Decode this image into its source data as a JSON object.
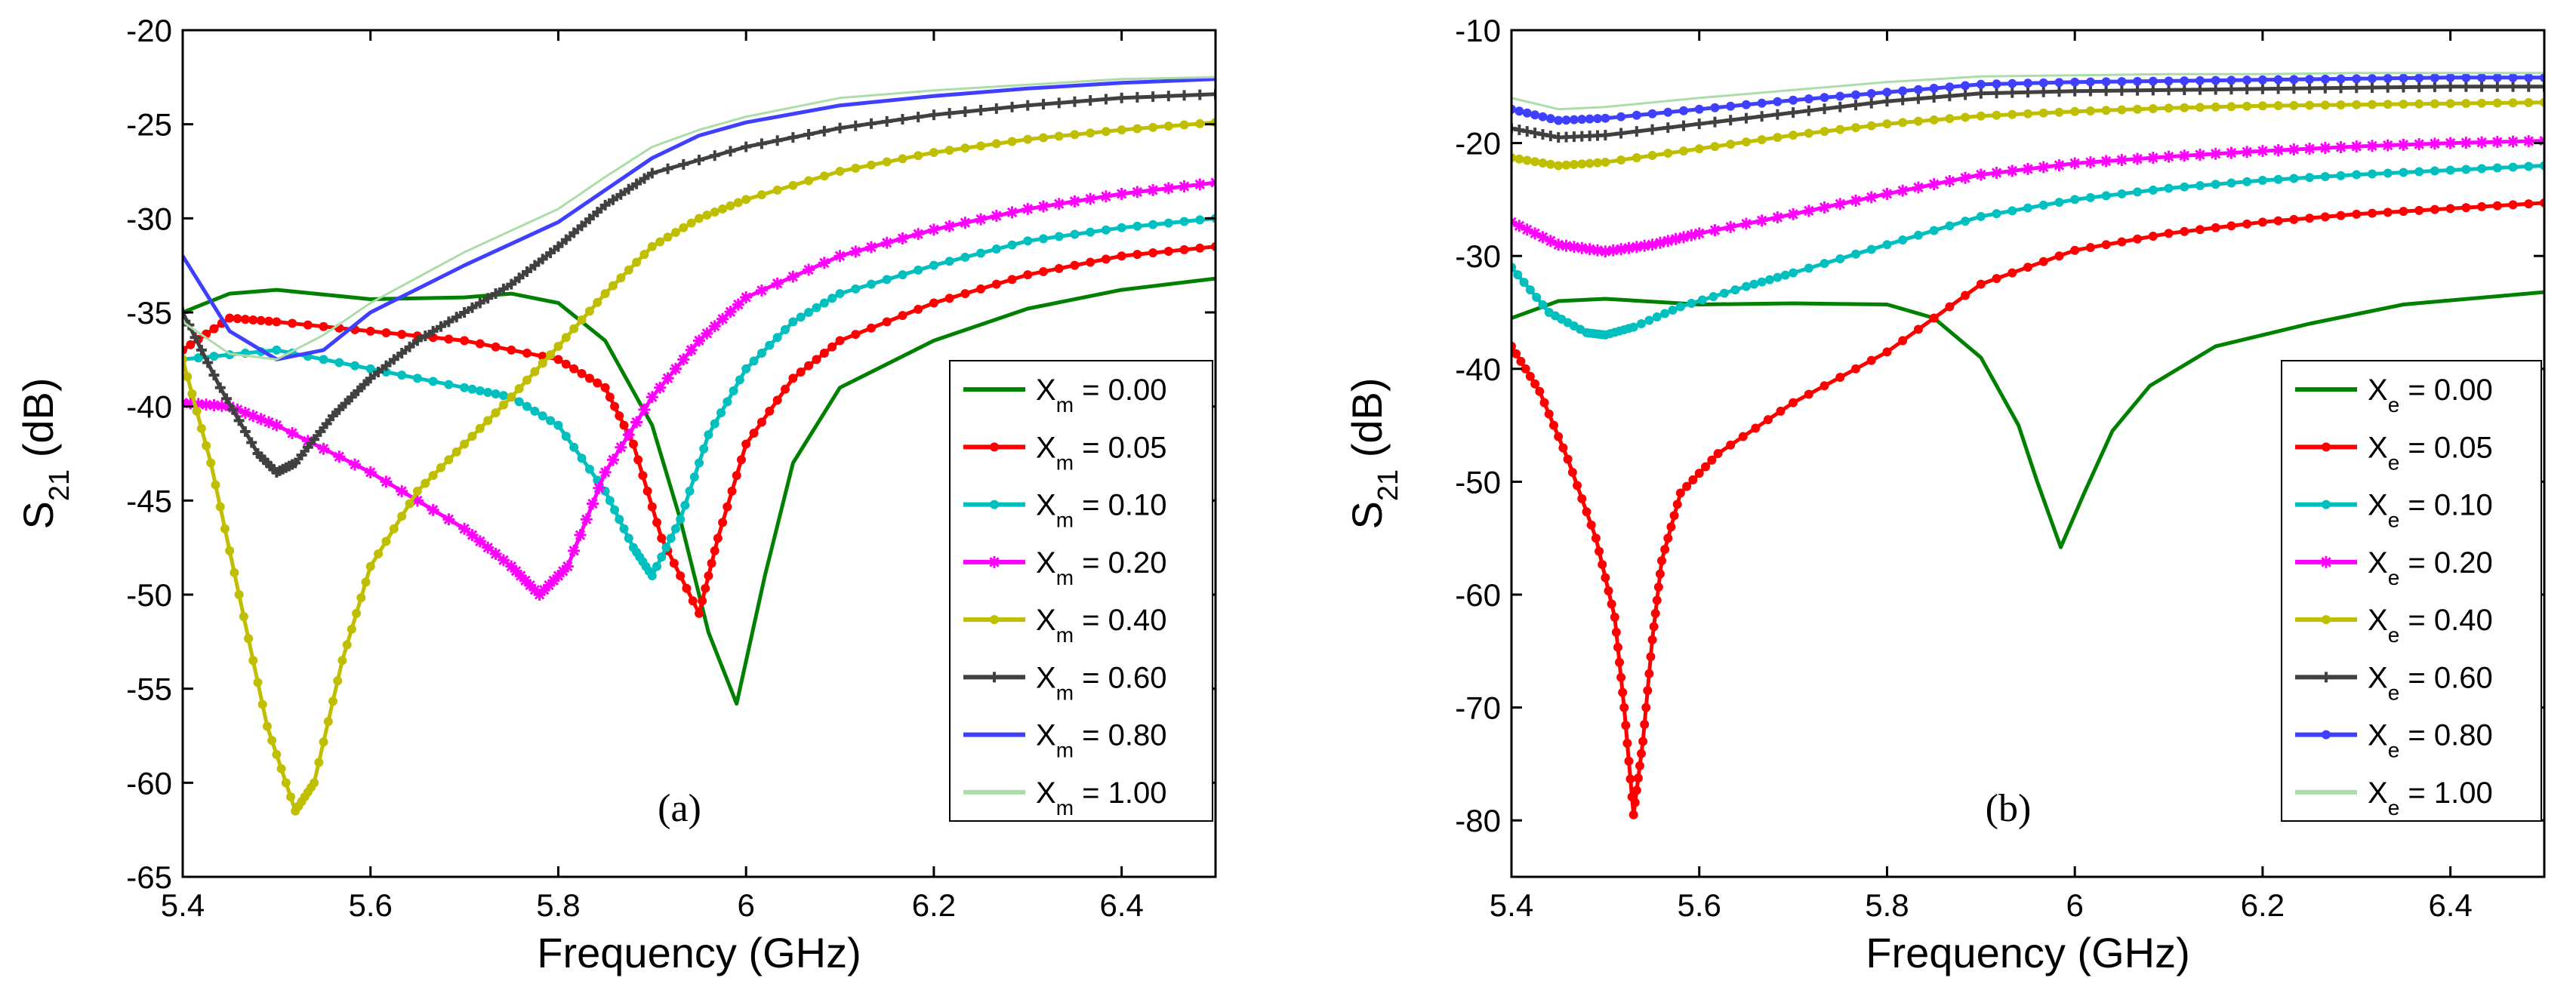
{
  "chart_data": [
    {
      "type": "line",
      "panel_label": "(a)",
      "xlabel": "Frequency (GHz)",
      "ylabel": "S",
      "ylabel_sub": "21",
      "ylabel_unit": " (dB)",
      "xlim": [
        5.4,
        6.5
      ],
      "ylim": [
        -65,
        -20
      ],
      "xticks": [
        5.4,
        5.6,
        5.8,
        6,
        6.2,
        6.4
      ],
      "xtick_labels": [
        "5.4",
        "5.6",
        "5.8",
        "6",
        "6.2",
        "6.4"
      ],
      "yticks": [
        -65,
        -60,
        -55,
        -50,
        -45,
        -40,
        -35,
        -30,
        -25,
        -20
      ],
      "ytick_labels": [
        "-65",
        "-60",
        "-55",
        "-50",
        "-45",
        "-40",
        "-35",
        "-30",
        "-25",
        "-20"
      ],
      "legend_position": "bottom-right",
      "legend_var": "X",
      "legend_sub": "m",
      "series": [
        {
          "name": "0.00",
          "label": " = 0.00",
          "color": "#008000",
          "marker": "none",
          "x": [
            5.4,
            5.45,
            5.5,
            5.6,
            5.7,
            5.75,
            5.8,
            5.85,
            5.9,
            5.93,
            5.96,
            5.99,
            6.02,
            6.05,
            6.1,
            6.2,
            6.3,
            6.4,
            6.5
          ],
          "y": [
            -35,
            -34,
            -33.8,
            -34.3,
            -34.2,
            -34.0,
            -34.5,
            -36.5,
            -41,
            -46,
            -52,
            -55.8,
            -49,
            -43,
            -39,
            -36.5,
            -34.8,
            -33.8,
            -33.2
          ]
        },
        {
          "name": "0.05",
          "label": " = 0.05",
          "color": "#ff0000",
          "marker": "dot",
          "x": [
            5.4,
            5.45,
            5.5,
            5.6,
            5.7,
            5.8,
            5.85,
            5.88,
            5.91,
            5.95,
            5.97,
            6.0,
            6.05,
            6.1,
            6.2,
            6.3,
            6.4,
            6.5
          ],
          "y": [
            -37,
            -35.3,
            -35.5,
            -36,
            -36.5,
            -37.5,
            -39,
            -42,
            -47,
            -51,
            -47,
            -42,
            -38.5,
            -36.5,
            -34.5,
            -33,
            -32,
            -31.5
          ]
        },
        {
          "name": "0.10",
          "label": " = 0.10",
          "color": "#00bfbf",
          "marker": "dot",
          "x": [
            5.4,
            5.5,
            5.6,
            5.7,
            5.75,
            5.8,
            5.85,
            5.88,
            5.9,
            5.93,
            5.96,
            6.0,
            6.05,
            6.1,
            6.2,
            6.3,
            6.4,
            6.5
          ],
          "y": [
            -37.5,
            -37,
            -38,
            -39,
            -39.5,
            -41,
            -44.5,
            -47.5,
            -49,
            -46,
            -41.5,
            -38,
            -35.5,
            -34,
            -32.5,
            -31.2,
            -30.5,
            -30
          ]
        },
        {
          "name": "0.20",
          "label": " = 0.20",
          "color": "#ff00ff",
          "marker": "star",
          "x": [
            5.4,
            5.45,
            5.5,
            5.6,
            5.7,
            5.75,
            5.78,
            5.81,
            5.85,
            5.9,
            5.95,
            6.0,
            6.1,
            6.2,
            6.3,
            6.4,
            6.5
          ],
          "y": [
            -39.8,
            -40,
            -41,
            -43.5,
            -46.5,
            -48.5,
            -50,
            -48.5,
            -43.5,
            -39.5,
            -36.5,
            -34.2,
            -32,
            -30.6,
            -29.5,
            -28.7,
            -28.1
          ]
        },
        {
          "name": "0.40",
          "label": " = 0.40",
          "color": "#bfbf00",
          "marker": "dot",
          "x": [
            5.4,
            5.43,
            5.46,
            5.49,
            5.52,
            5.54,
            5.57,
            5.6,
            5.65,
            5.7,
            5.75,
            5.8,
            5.85,
            5.9,
            5.95,
            6.0,
            6.1,
            6.2,
            6.3,
            6.4,
            6.5
          ],
          "y": [
            -37.5,
            -43,
            -50,
            -57,
            -61.5,
            -60,
            -53.5,
            -48.5,
            -44.5,
            -42,
            -39.5,
            -36.8,
            -34,
            -31.5,
            -30,
            -29,
            -27.5,
            -26.5,
            -25.8,
            -25.3,
            -24.9
          ]
        },
        {
          "name": "0.60",
          "label": " = 0.60",
          "color": "#404040",
          "marker": "plus",
          "x": [
            5.4,
            5.44,
            5.48,
            5.5,
            5.52,
            5.56,
            5.6,
            5.65,
            5.7,
            5.75,
            5.8,
            5.85,
            5.9,
            6.0,
            6.1,
            6.2,
            6.3,
            6.4,
            6.5
          ],
          "y": [
            -35,
            -39,
            -42.5,
            -43.5,
            -43,
            -40.5,
            -38.5,
            -36.5,
            -35,
            -33.5,
            -31.5,
            -29.3,
            -27.6,
            -26.2,
            -25.2,
            -24.5,
            -24,
            -23.6,
            -23.4
          ]
        },
        {
          "name": "0.80",
          "label": " = 0.80",
          "color": "#3f3fff",
          "marker": "none",
          "x": [
            5.4,
            5.45,
            5.5,
            5.55,
            5.6,
            5.7,
            5.8,
            5.85,
            5.9,
            5.95,
            6.0,
            6.1,
            6.2,
            6.3,
            6.4,
            6.5
          ],
          "y": [
            -32,
            -36,
            -37.5,
            -37,
            -35,
            -32.5,
            -30.2,
            -28.5,
            -26.8,
            -25.6,
            -24.9,
            -24,
            -23.5,
            -23.1,
            -22.8,
            -22.6
          ]
        },
        {
          "name": "1.00",
          "label": " = 1.00",
          "color": "#aaddaa",
          "marker": "none",
          "x": [
            5.4,
            5.45,
            5.5,
            5.55,
            5.6,
            5.7,
            5.8,
            5.85,
            5.9,
            5.95,
            6.0,
            6.1,
            6.2,
            6.3,
            6.4,
            6.5
          ],
          "y": [
            -35.5,
            -37.2,
            -37.5,
            -36.2,
            -34.5,
            -31.8,
            -29.5,
            -27.8,
            -26.2,
            -25.3,
            -24.6,
            -23.6,
            -23.2,
            -22.9,
            -22.6,
            -22.5
          ]
        }
      ]
    },
    {
      "type": "line",
      "panel_label": "(b)",
      "xlabel": "Frequency (GHz)",
      "ylabel": "S",
      "ylabel_sub": "21",
      "ylabel_unit": " (dB)",
      "xlim": [
        5.4,
        6.5
      ],
      "ylim": [
        -85,
        -10
      ],
      "xticks": [
        5.4,
        5.6,
        5.8,
        6,
        6.2,
        6.4
      ],
      "xtick_labels": [
        "5.4",
        "5.6",
        "5.8",
        "6",
        "6.2",
        "6.4"
      ],
      "yticks": [
        -80,
        -70,
        -60,
        -50,
        -40,
        -30,
        -20,
        -10
      ],
      "ytick_labels": [
        "-80",
        "-70",
        "-60",
        "-50",
        "-40",
        "-30",
        "-20",
        "-10"
      ],
      "legend_position": "bottom-right",
      "legend_var": "X",
      "legend_sub": "e",
      "series": [
        {
          "name": "0.00",
          "label": " = 0.00",
          "color": "#008000",
          "marker": "none",
          "x": [
            5.4,
            5.45,
            5.5,
            5.6,
            5.7,
            5.8,
            5.85,
            5.9,
            5.94,
            5.96,
            5.985,
            6.01,
            6.04,
            6.08,
            6.15,
            6.25,
            6.35,
            6.5
          ],
          "y": [
            -35.5,
            -34,
            -33.8,
            -34.3,
            -34.2,
            -34.3,
            -35.5,
            -39,
            -45,
            -50,
            -55.8,
            -51,
            -45.5,
            -41.5,
            -38,
            -36,
            -34.3,
            -33.2
          ]
        },
        {
          "name": "0.05",
          "label": " = 0.05",
          "color": "#ff0000",
          "marker": "dot",
          "x": [
            5.4,
            5.43,
            5.46,
            5.49,
            5.51,
            5.52,
            5.53,
            5.54,
            5.55,
            5.56,
            5.58,
            5.62,
            5.7,
            5.8,
            5.9,
            6.0,
            6.1,
            6.2,
            6.3,
            6.4,
            6.5
          ],
          "y": [
            -38,
            -42,
            -48,
            -55,
            -62,
            -70,
            -79.5,
            -73,
            -64,
            -57,
            -51,
            -47.5,
            -43,
            -38.5,
            -32.5,
            -29.5,
            -28,
            -27,
            -26.3,
            -25.8,
            -25.3
          ]
        },
        {
          "name": "0.10",
          "label": " = 0.10",
          "color": "#00bfbf",
          "marker": "dot",
          "x": [
            5.4,
            5.44,
            5.48,
            5.5,
            5.53,
            5.58,
            5.65,
            5.7,
            5.8,
            5.9,
            6.0,
            6.1,
            6.2,
            6.3,
            6.4,
            6.5
          ],
          "y": [
            -31,
            -35,
            -36.8,
            -37,
            -36.3,
            -34.5,
            -32.7,
            -31.5,
            -29,
            -26.5,
            -25,
            -24,
            -23.3,
            -22.8,
            -22.4,
            -22
          ]
        },
        {
          "name": "0.20",
          "label": " = 0.20",
          "color": "#ff00ff",
          "marker": "star",
          "x": [
            5.4,
            5.45,
            5.5,
            5.55,
            5.6,
            5.7,
            5.8,
            5.9,
            6.0,
            6.1,
            6.2,
            6.3,
            6.4,
            6.5
          ],
          "y": [
            -27,
            -29,
            -29.6,
            -29,
            -28,
            -26.3,
            -24.5,
            -22.8,
            -21.8,
            -21.2,
            -20.7,
            -20.3,
            -20,
            -19.8
          ]
        },
        {
          "name": "0.40",
          "label": " = 0.40",
          "color": "#bfbf00",
          "marker": "dot",
          "x": [
            5.4,
            5.45,
            5.5,
            5.6,
            5.7,
            5.8,
            5.9,
            6.0,
            6.1,
            6.2,
            6.3,
            6.4,
            6.5
          ],
          "y": [
            -21.3,
            -22,
            -21.7,
            -20.5,
            -19.3,
            -18.3,
            -17.6,
            -17.2,
            -16.9,
            -16.7,
            -16.6,
            -16.5,
            -16.4
          ]
        },
        {
          "name": "0.60",
          "label": " = 0.60",
          "color": "#404040",
          "marker": "plus",
          "x": [
            5.4,
            5.45,
            5.5,
            5.6,
            5.7,
            5.8,
            5.9,
            6.0,
            6.1,
            6.2,
            6.3,
            6.4,
            6.5
          ],
          "y": [
            -18.7,
            -19.5,
            -19.3,
            -18.3,
            -17.3,
            -16.3,
            -15.6,
            -15.4,
            -15.3,
            -15.2,
            -15.1,
            -15,
            -15
          ]
        },
        {
          "name": "0.80",
          "label": " = 0.80",
          "color": "#3f3fff",
          "marker": "dot",
          "x": [
            5.4,
            5.45,
            5.5,
            5.6,
            5.7,
            5.8,
            5.9,
            6.0,
            6.1,
            6.2,
            6.3,
            6.4,
            6.5
          ],
          "y": [
            -17,
            -18,
            -17.8,
            -17,
            -16.2,
            -15.5,
            -14.8,
            -14.6,
            -14.5,
            -14.4,
            -14.3,
            -14.2,
            -14.2
          ]
        },
        {
          "name": "1.00",
          "label": " = 1.00",
          "color": "#aaddaa",
          "marker": "none",
          "x": [
            5.4,
            5.45,
            5.5,
            5.6,
            5.7,
            5.8,
            5.9,
            6.0,
            6.1,
            6.2,
            6.3,
            6.4,
            6.5
          ],
          "y": [
            -16,
            -17,
            -16.8,
            -16,
            -15.3,
            -14.6,
            -14.1,
            -14,
            -13.9,
            -13.9,
            -13.8,
            -13.8,
            -13.8
          ]
        }
      ]
    }
  ]
}
